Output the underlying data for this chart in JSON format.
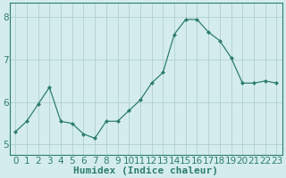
{
  "x": [
    0,
    1,
    2,
    3,
    4,
    5,
    6,
    7,
    8,
    9,
    10,
    11,
    12,
    13,
    14,
    15,
    16,
    17,
    18,
    19,
    20,
    21,
    22,
    23
  ],
  "y": [
    5.3,
    5.55,
    5.95,
    6.35,
    5.55,
    5.5,
    5.25,
    5.15,
    5.55,
    5.55,
    5.8,
    6.05,
    6.45,
    6.7,
    7.6,
    7.95,
    7.95,
    7.65,
    7.45,
    7.05,
    6.45,
    6.45,
    6.5,
    6.45
  ],
  "xlabel": "Humidex (Indice chaleur)",
  "xlim": [
    -0.5,
    23.5
  ],
  "ylim": [
    4.75,
    8.35
  ],
  "yticks": [
    5,
    6,
    7,
    8
  ],
  "xticks": [
    0,
    1,
    2,
    3,
    4,
    5,
    6,
    7,
    8,
    9,
    10,
    11,
    12,
    13,
    14,
    15,
    16,
    17,
    18,
    19,
    20,
    21,
    22,
    23
  ],
  "line_color": "#2e7d6e",
  "marker": "D",
  "marker_size": 2.0,
  "bg_color": "#d4edec",
  "grid_color": "#afd0cd",
  "xlabel_fontsize": 8,
  "tick_fontsize": 7.5,
  "axis_color": "#2e7d6e"
}
